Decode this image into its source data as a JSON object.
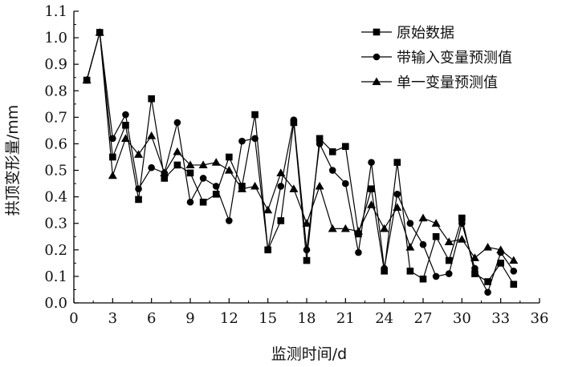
{
  "chart_data": {
    "type": "line",
    "title": "",
    "xlabel": "监测时间/d",
    "ylabel": "拱顶变形量/mm",
    "xlim": [
      0,
      36
    ],
    "ylim": [
      0.0,
      1.1
    ],
    "x_ticks": [
      "0",
      "3",
      "6",
      "9",
      "12",
      "15",
      "18",
      "21",
      "24",
      "27",
      "30",
      "33",
      "36"
    ],
    "y_ticks": [
      "0.0",
      "0.1",
      "0.2",
      "0.3",
      "0.4",
      "0.5",
      "0.6",
      "0.7",
      "0.8",
      "0.9",
      "1.0",
      "1.1"
    ],
    "grid": false,
    "legend_position": "top-right",
    "x": [
      1,
      2,
      3,
      4,
      5,
      6,
      7,
      8,
      9,
      10,
      11,
      12,
      13,
      14,
      15,
      16,
      17,
      18,
      19,
      20,
      21,
      22,
      23,
      24,
      25,
      26,
      27,
      28,
      29,
      30,
      31,
      32,
      33,
      34
    ],
    "series": [
      {
        "name": "原始数据",
        "marker": "square",
        "values": [
          0.84,
          1.02,
          0.55,
          0.67,
          0.39,
          0.77,
          0.47,
          0.52,
          0.49,
          0.38,
          0.41,
          0.55,
          0.44,
          0.71,
          0.2,
          0.31,
          0.68,
          0.16,
          0.62,
          0.57,
          0.59,
          0.26,
          0.43,
          0.12,
          0.53,
          0.12,
          0.09,
          0.25,
          0.16,
          0.32,
          0.11,
          0.08,
          0.15,
          0.07
        ]
      },
      {
        "name": "带输入变量预测值",
        "marker": "circle",
        "values": [
          0.84,
          1.02,
          0.62,
          0.71,
          0.43,
          0.51,
          0.49,
          0.68,
          0.38,
          0.47,
          0.44,
          0.31,
          0.61,
          0.62,
          0.2,
          0.44,
          0.69,
          0.2,
          0.6,
          0.5,
          0.45,
          0.19,
          0.53,
          0.13,
          0.41,
          0.3,
          0.22,
          0.1,
          0.11,
          0.3,
          0.13,
          0.04,
          0.19,
          0.12
        ]
      },
      {
        "name": "单一变量预测值",
        "marker": "triangle",
        "values": [
          0.84,
          1.02,
          0.48,
          0.62,
          0.56,
          0.63,
          0.49,
          0.57,
          0.52,
          0.52,
          0.53,
          0.5,
          0.43,
          0.44,
          0.35,
          0.49,
          0.43,
          0.3,
          0.44,
          0.28,
          0.28,
          0.27,
          0.37,
          0.28,
          0.36,
          0.21,
          0.32,
          0.3,
          0.23,
          0.24,
          0.17,
          0.21,
          0.2,
          0.16
        ]
      }
    ]
  }
}
